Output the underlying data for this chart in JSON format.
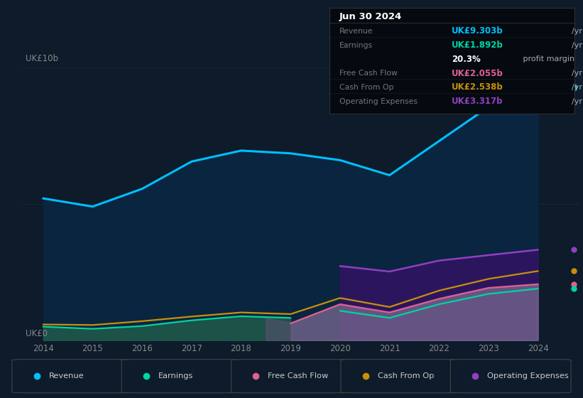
{
  "bg_color": "#0d1b2a",
  "years": [
    2014,
    2015,
    2016,
    2017,
    2018,
    2019,
    2020,
    2021,
    2022,
    2023,
    2024
  ],
  "revenue": [
    5.2,
    4.9,
    5.55,
    6.55,
    6.95,
    6.85,
    6.6,
    6.05,
    7.3,
    8.55,
    9.303
  ],
  "earnings_pre": [
    0.5,
    0.42,
    0.52,
    0.73,
    0.88,
    0.82,
    null,
    null,
    null,
    null,
    null
  ],
  "earnings_post": [
    null,
    null,
    null,
    null,
    null,
    null,
    1.08,
    0.82,
    1.32,
    1.7,
    1.892
  ],
  "fcf": [
    null,
    null,
    null,
    null,
    null,
    0.62,
    1.32,
    1.02,
    1.52,
    1.92,
    2.055
  ],
  "cash_from_op": [
    0.58,
    0.56,
    0.7,
    0.87,
    1.02,
    0.96,
    1.55,
    1.22,
    1.82,
    2.25,
    2.538
  ],
  "opex": [
    null,
    null,
    null,
    null,
    null,
    null,
    2.72,
    2.52,
    2.92,
    3.12,
    3.317
  ],
  "xlim": [
    2013.6,
    2024.85
  ],
  "ylim": [
    0,
    10.5
  ],
  "color_revenue": "#00bfff",
  "color_earnings": "#00d4a0",
  "color_fill_earnings_pre": "#1d5248",
  "color_fill_rev": "#0a2540",
  "color_fcf": "#e06090",
  "color_cashop": "#c8900a",
  "color_opex": "#9040c0",
  "color_fill_opex_dark": "#2d1660",
  "color_fill_gray": "#6a5a80",
  "info_title": "Jun 30 2024",
  "info_rows": [
    {
      "label": "Revenue",
      "value": "UK£9.303b",
      "unit": "/yr",
      "color": "#00bfff",
      "bold_val": true
    },
    {
      "label": "Earnings",
      "value": "UK£1.892b",
      "unit": "/yr",
      "color": "#00d4a0",
      "bold_val": true
    },
    {
      "label": "",
      "value": "20.3%",
      "unit": " profit margin",
      "color": "#ffffff",
      "bold_val": true
    },
    {
      "label": "Free Cash Flow",
      "value": "UK£2.055b",
      "unit": "/yr",
      "color": "#e06090",
      "bold_val": true
    },
    {
      "label": "Cash From Op",
      "value": "UK£2.538b",
      "unit": "/yr",
      "color": "#c8900a",
      "bold_val": true
    },
    {
      "label": "Operating Expenses",
      "value": "UK£3.317b",
      "unit": "/yr",
      "color": "#9040c0",
      "bold_val": true
    }
  ],
  "legend_items": [
    {
      "label": "Revenue",
      "color": "#00bfff"
    },
    {
      "label": "Earnings",
      "color": "#00d4a0"
    },
    {
      "label": "Free Cash Flow",
      "color": "#e06090"
    },
    {
      "label": "Cash From Op",
      "color": "#c8900a"
    },
    {
      "label": "Operating Expenses",
      "color": "#9040c0"
    }
  ],
  "xticks": [
    2014,
    2015,
    2016,
    2017,
    2018,
    2019,
    2020,
    2021,
    2022,
    2023,
    2024
  ]
}
